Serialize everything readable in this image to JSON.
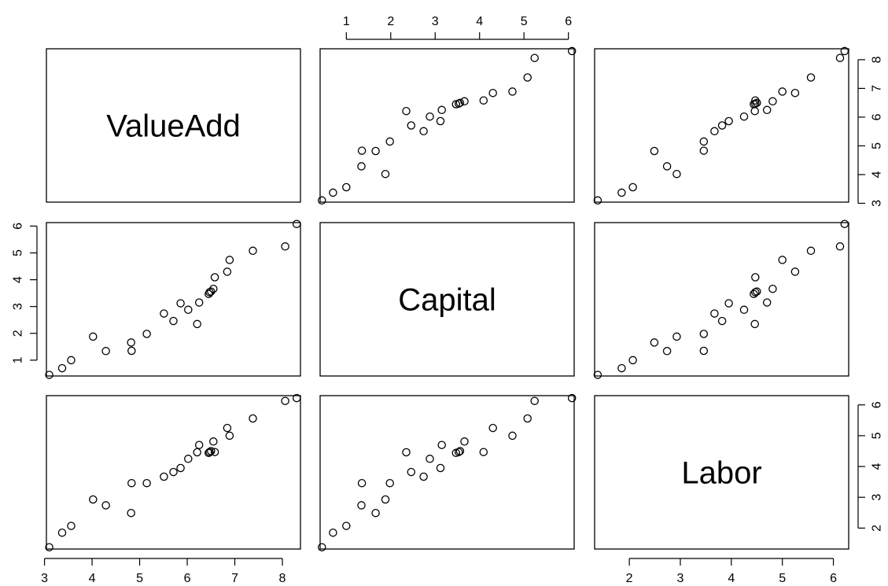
{
  "chart_data": {
    "type": "scatter",
    "title": "",
    "variables": [
      {
        "name": "ValueAdd",
        "ticks": [
          "3",
          "4",
          "5",
          "6",
          "7",
          "8"
        ],
        "tick_values": [
          3,
          4,
          5,
          6,
          7,
          8
        ],
        "range": [
          3.04,
          8.38
        ]
      },
      {
        "name": "Capital",
        "ticks": [
          "1",
          "2",
          "3",
          "4",
          "5",
          "6"
        ],
        "tick_values": [
          1,
          2,
          3,
          4,
          5,
          6
        ],
        "range": [
          0.41,
          6.13
        ]
      },
      {
        "name": "Labor",
        "ticks": [
          "2",
          "3",
          "4",
          "5",
          "6"
        ],
        "tick_values": [
          2,
          3,
          4,
          5,
          6
        ],
        "range": [
          1.32,
          6.3
        ]
      }
    ],
    "axes_placement": {
      "x_bottom": [
        "ValueAdd",
        null,
        "Labor"
      ],
      "x_top": [
        null,
        "Capital",
        null
      ],
      "y_left": [
        null,
        "Capital",
        null
      ],
      "y_right": [
        "ValueAdd",
        null,
        "Labor"
      ]
    },
    "observations": [
      {
        "ValueAdd": 3.1,
        "Capital": 0.45,
        "Labor": 1.38
      },
      {
        "ValueAdd": 3.37,
        "Capital": 0.7,
        "Labor": 1.85
      },
      {
        "ValueAdd": 3.56,
        "Capital": 1.0,
        "Labor": 2.07
      },
      {
        "ValueAdd": 4.02,
        "Capital": 1.88,
        "Labor": 2.93
      },
      {
        "ValueAdd": 4.29,
        "Capital": 1.34,
        "Labor": 2.74
      },
      {
        "ValueAdd": 4.83,
        "Capital": 1.35,
        "Labor": 3.46
      },
      {
        "ValueAdd": 4.82,
        "Capital": 1.66,
        "Labor": 2.49
      },
      {
        "ValueAdd": 5.15,
        "Capital": 1.98,
        "Labor": 3.46
      },
      {
        "ValueAdd": 5.51,
        "Capital": 2.74,
        "Labor": 3.67
      },
      {
        "ValueAdd": 5.71,
        "Capital": 2.46,
        "Labor": 3.82
      },
      {
        "ValueAdd": 5.86,
        "Capital": 3.12,
        "Labor": 3.95
      },
      {
        "ValueAdd": 6.02,
        "Capital": 2.88,
        "Labor": 4.25
      },
      {
        "ValueAdd": 6.21,
        "Capital": 2.35,
        "Labor": 4.46
      },
      {
        "ValueAdd": 6.25,
        "Capital": 3.15,
        "Labor": 4.7
      },
      {
        "ValueAdd": 6.45,
        "Capital": 3.47,
        "Labor": 4.44
      },
      {
        "ValueAdd": 6.47,
        "Capital": 3.53,
        "Labor": 4.47
      },
      {
        "ValueAdd": 6.5,
        "Capital": 3.56,
        "Labor": 4.5
      },
      {
        "ValueAdd": 6.55,
        "Capital": 3.66,
        "Labor": 4.81
      },
      {
        "ValueAdd": 6.58,
        "Capital": 4.09,
        "Labor": 4.47
      },
      {
        "ValueAdd": 6.84,
        "Capital": 4.3,
        "Labor": 5.25
      },
      {
        "ValueAdd": 6.89,
        "Capital": 4.74,
        "Labor": 5.0
      },
      {
        "ValueAdd": 7.38,
        "Capital": 5.08,
        "Labor": 5.56
      },
      {
        "ValueAdd": 8.06,
        "Capital": 5.24,
        "Labor": 6.13
      },
      {
        "ValueAdd": 8.3,
        "Capital": 6.08,
        "Labor": 6.22
      }
    ]
  }
}
